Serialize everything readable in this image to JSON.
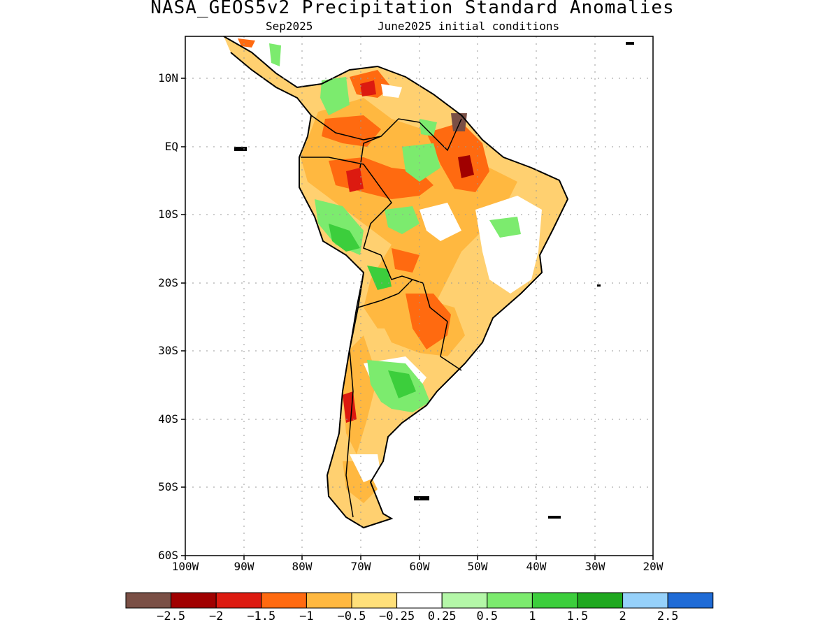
{
  "title": "NASA_GEOS5v2 Precipitation Standard Anomalies",
  "subtitle_left": "Sep2025",
  "subtitle_right": "June2025 initial conditions",
  "lat_labels": [
    "10N",
    "EQ",
    "10S",
    "20S",
    "30S",
    "40S",
    "50S",
    "60S"
  ],
  "lon_labels": [
    "100W",
    "90W",
    "80W",
    "70W",
    "60W",
    "50W",
    "40W",
    "30W",
    "20W"
  ],
  "legend": {
    "colors": [
      "#7a4f45",
      "#a00000",
      "#dc1a10",
      "#ff6a10",
      "#ffb840",
      "#ffe07a",
      "#ffffff",
      "#b4f7a8",
      "#7ceb6e",
      "#3cce3c",
      "#1fa81f",
      "#96d1fa",
      "#1f6bd6"
    ],
    "labels": [
      "−2.5",
      "−2",
      "−1.5",
      "−1",
      "−0.5",
      "−0.25",
      "0.25",
      "0.5",
      "1",
      "1.5",
      "2",
      "2.5"
    ]
  }
}
